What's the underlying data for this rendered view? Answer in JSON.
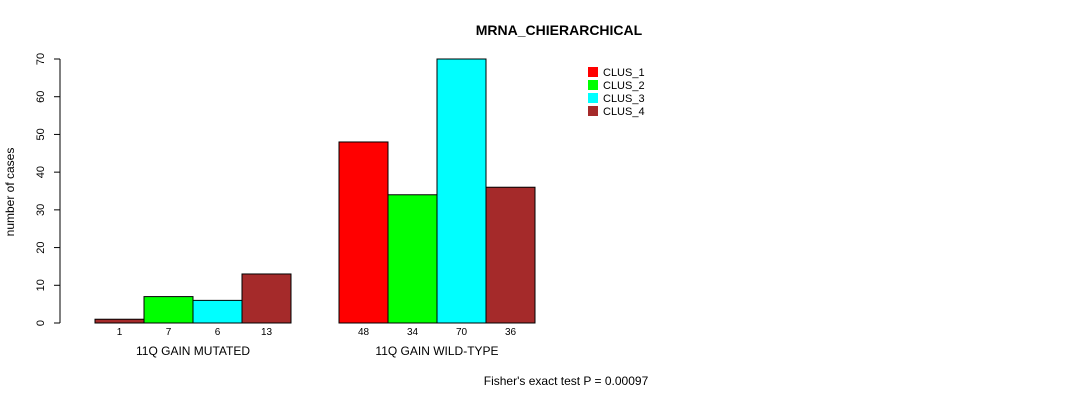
{
  "chart_data": {
    "type": "bar",
    "title": "MRNA_CHIERARCHICAL",
    "xlabel": "",
    "ylabel": "number of cases",
    "ylim": [
      0,
      70
    ],
    "yticks": [
      0,
      10,
      20,
      30,
      40,
      50,
      60,
      70
    ],
    "categories": [
      "11Q GAIN MUTATED",
      "11Q GAIN WILD-TYPE"
    ],
    "series": [
      {
        "name": "CLUS_1",
        "color": "#ff0000",
        "values": [
          1,
          48
        ]
      },
      {
        "name": "CLUS_2",
        "color": "#00ff00",
        "values": [
          7,
          34
        ]
      },
      {
        "name": "CLUS_3",
        "color": "#00ffff",
        "values": [
          6,
          70
        ]
      },
      {
        "name": "CLUS_4",
        "color": "#a52a2a",
        "values": [
          13,
          36
        ]
      }
    ],
    "first_bar_color_override": "#a52a2a",
    "legend_position": "top-right",
    "grid": false,
    "footnote": "Fisher's exact test P = 0.00097"
  }
}
